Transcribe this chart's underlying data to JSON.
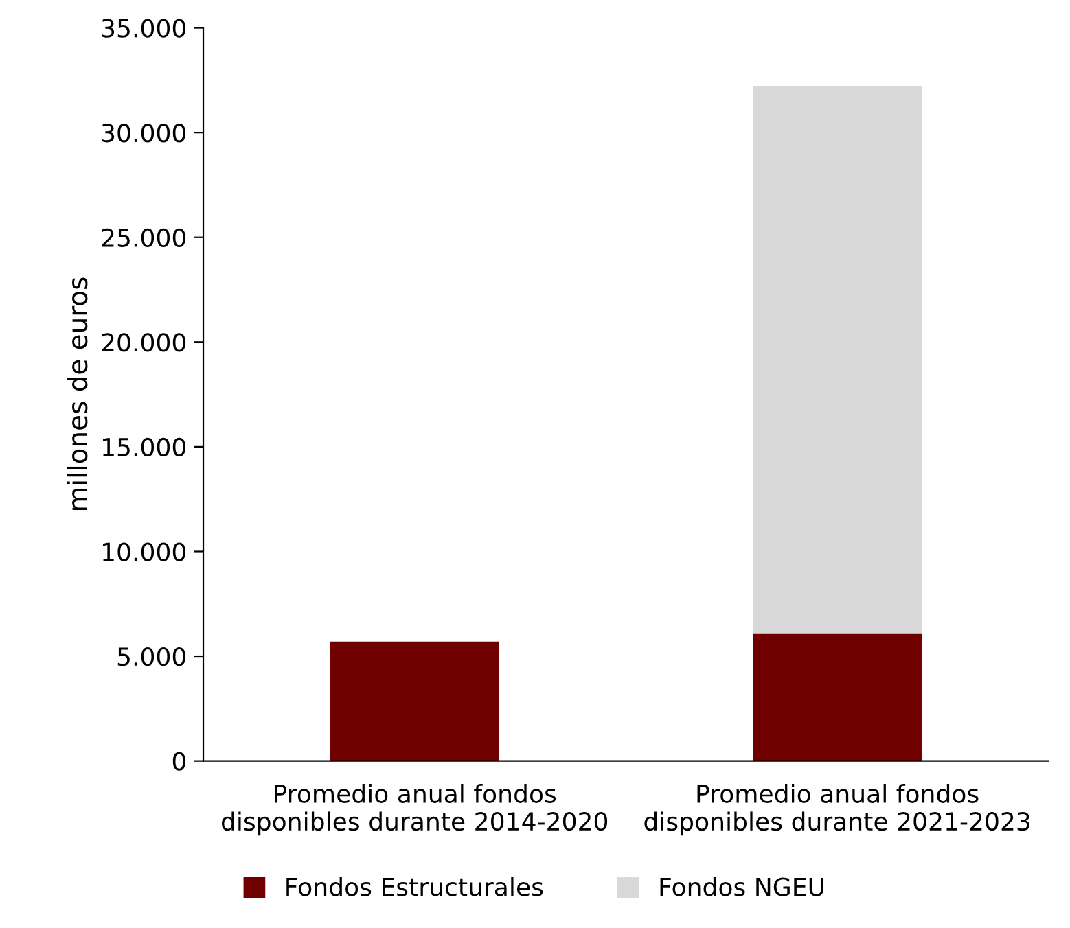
{
  "chart_data": {
    "type": "bar",
    "stacked": true,
    "ylabel": "millones de euros",
    "categories": [
      "Promedio anual fondos\ndisponibles durante 2014-2020",
      "Promedio anual fondos\ndisponibles durante 2021-2023"
    ],
    "series": [
      {
        "name": "Fondos Estructurales",
        "color": "#700000",
        "values": [
          5700,
          6100
        ]
      },
      {
        "name": "Fondos NGEU",
        "color": "#d9d9d9",
        "values": [
          null,
          26100
        ]
      }
    ],
    "ylim": [
      0,
      35000
    ],
    "yticks": [
      {
        "value": 0,
        "label": "0"
      },
      {
        "value": 5000,
        "label": "5.000"
      },
      {
        "value": 10000,
        "label": "10.000"
      },
      {
        "value": 15000,
        "label": "15.000"
      },
      {
        "value": 20000,
        "label": "20.000"
      },
      {
        "value": 25000,
        "label": "25.000"
      },
      {
        "value": 30000,
        "label": "30.000"
      },
      {
        "value": 35000,
        "label": "35.000"
      }
    ],
    "grid": false,
    "legend": "bottom"
  }
}
